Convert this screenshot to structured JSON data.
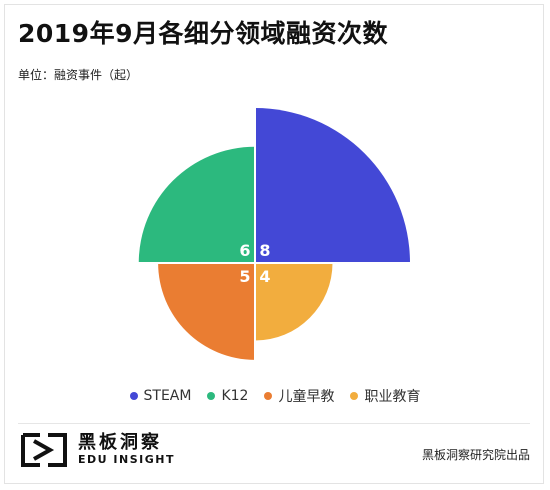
{
  "title": "2019年9月各细分领域融资次数",
  "unit_label": "单位：融资事件（起）",
  "chart_data": {
    "type": "pie",
    "chart_style": "nightingale-quadrant",
    "categories": [
      "STEAM",
      "K12",
      "儿童早教",
      "职业教育"
    ],
    "values": [
      8,
      6,
      5,
      4
    ],
    "value_labels": [
      "8",
      "6",
      "5",
      "4"
    ],
    "colors": [
      "#4348d6",
      "#2cb97e",
      "#ea7d32",
      "#f2ad3e"
    ],
    "legend_position": "bottom"
  },
  "legend": [
    {
      "label": "STEAM",
      "color": "#4348d6"
    },
    {
      "label": "K12",
      "color": "#2cb97e"
    },
    {
      "label": "儿童早教",
      "color": "#ea7d32"
    },
    {
      "label": "职业教育",
      "color": "#f2ad3e"
    }
  ],
  "footer": {
    "logo_cn": "黑板洞察",
    "logo_en": "EDU INSIGHT",
    "source": "黑板洞察研究院出品"
  }
}
